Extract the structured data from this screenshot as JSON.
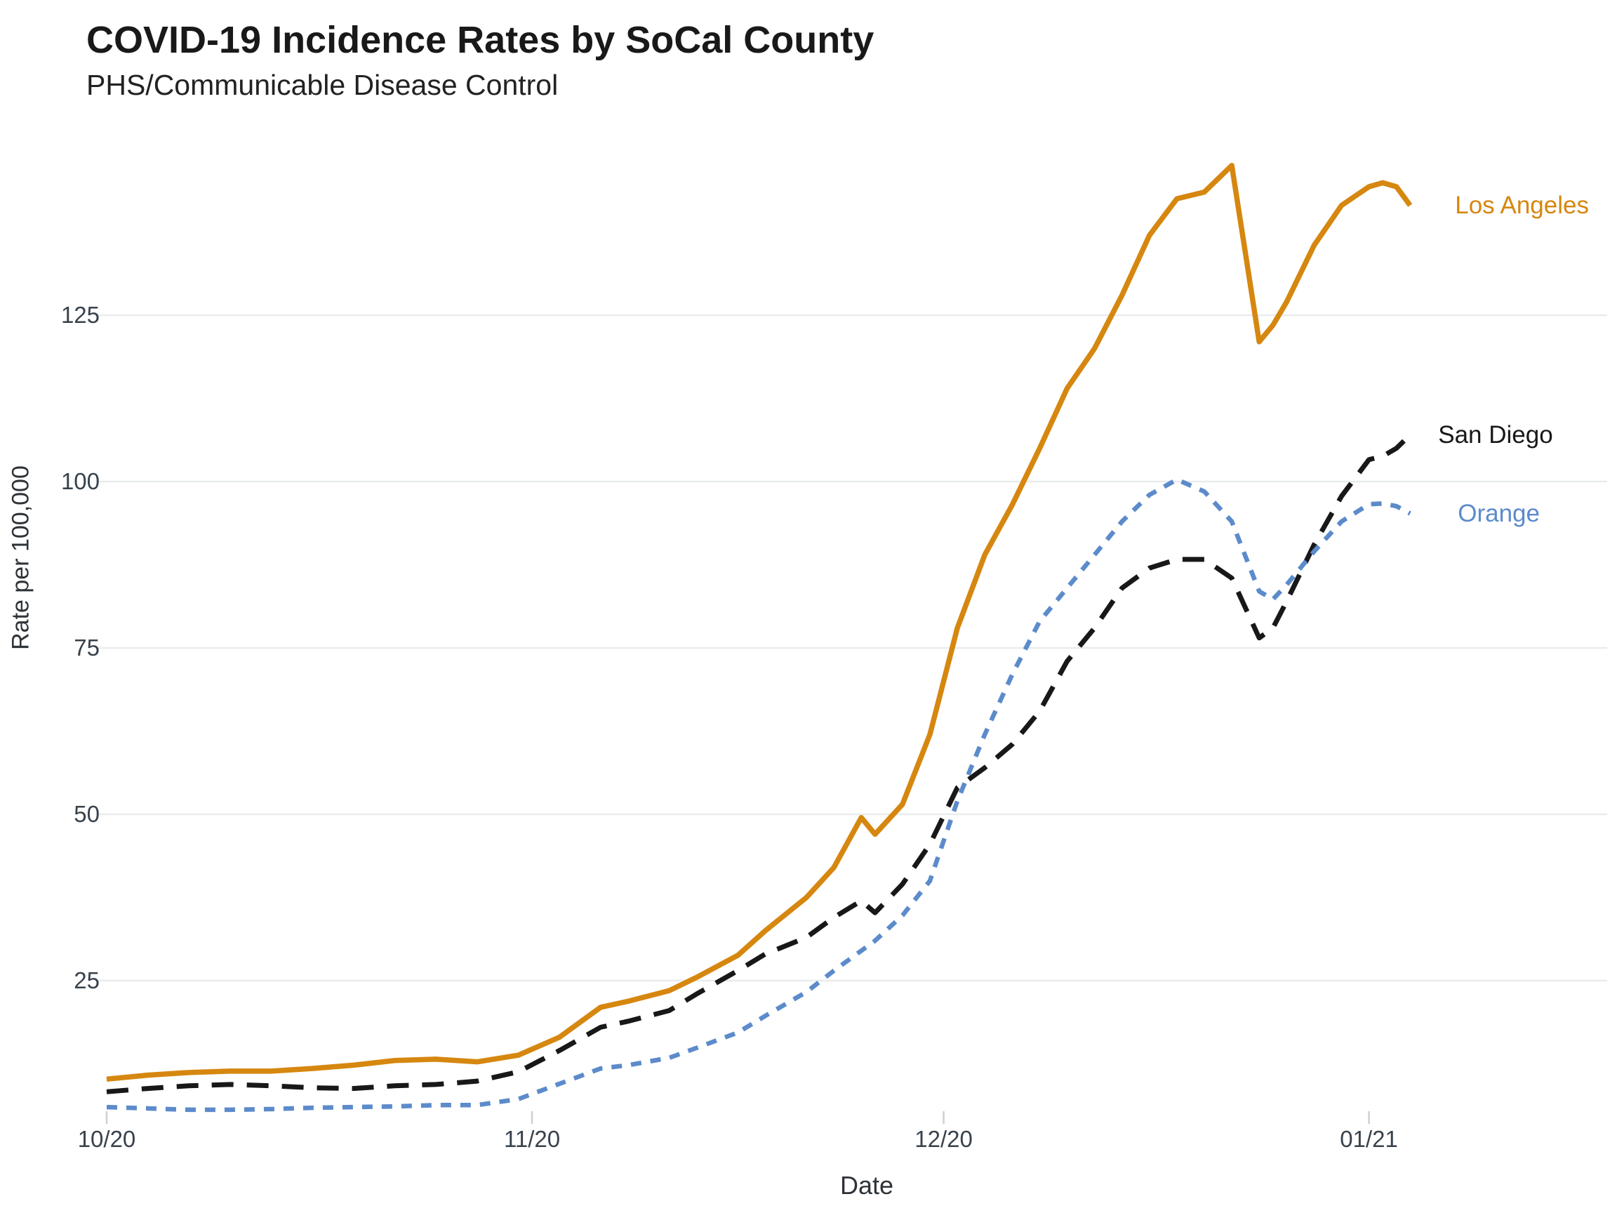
{
  "header": {
    "title": "COVID-19 Incidence Rates by SoCal County",
    "subtitle": "PHS/Communicable Disease Control"
  },
  "axes": {
    "x": {
      "label": "Date"
    },
    "y": {
      "label": "Rate per 100,000"
    }
  },
  "colors": {
    "background": "#ffffff",
    "gridline": "#e9eced",
    "tick_mark": "#cbd0d4",
    "tick_text": "#38424c",
    "los_angeles": "#d6870f",
    "san_diego": "#181818",
    "orange": "#5c8bcb"
  },
  "chart_data": {
    "type": "line",
    "title": "COVID-19 Incidence Rates by SoCal County",
    "subtitle": "PHS/Communicable Disease Control",
    "xlabel": "Date",
    "ylabel": "Rate per 100,000",
    "grid": "horizontal-only",
    "legend_position": "right-of-line-ends",
    "ylim": [
      5,
      157
    ],
    "y_ticks": [
      {
        "label": "25",
        "value": 25
      },
      {
        "label": "50",
        "value": 50
      },
      {
        "label": "75",
        "value": 75
      },
      {
        "label": "100",
        "value": 100
      },
      {
        "label": "125",
        "value": 125
      }
    ],
    "x_ticks": [
      {
        "label": "10/20",
        "day": 0
      },
      {
        "label": "11/20",
        "day": 31
      },
      {
        "label": "12/20",
        "day": 61
      },
      {
        "label": "01/21",
        "day": 92
      }
    ],
    "x_dates": [
      "10/01",
      "10/04",
      "10/07",
      "10/10",
      "10/13",
      "10/16",
      "10/19",
      "10/22",
      "10/25",
      "10/28",
      "10/31",
      "11/03",
      "11/06",
      "11/08",
      "11/11",
      "11/13",
      "11/16",
      "11/18",
      "11/21",
      "11/23",
      "11/25",
      "11/26",
      "11/28",
      "11/30",
      "12/02",
      "12/04",
      "12/06",
      "12/08",
      "12/10",
      "12/12",
      "12/14",
      "12/16",
      "12/18",
      "12/20",
      "12/22",
      "12/24",
      "12/25",
      "12/26",
      "12/28",
      "12/30",
      "01/01",
      "01/02",
      "01/03",
      "01/04"
    ],
    "day_offsets": [
      0,
      3,
      6,
      9,
      12,
      15,
      18,
      21,
      24,
      27,
      30,
      33,
      36,
      38,
      41,
      43,
      46,
      48,
      51,
      53,
      55,
      56,
      58,
      60,
      62,
      64,
      66,
      68,
      70,
      72,
      74,
      76,
      78,
      80,
      82,
      84,
      85,
      86,
      88,
      90,
      92,
      93,
      94,
      95
    ],
    "series": [
      {
        "name": "Los Angeles",
        "color": "#d6870f",
        "line_style": "solid",
        "values": [
          10.2,
          10.8,
          11.2,
          11.4,
          11.4,
          11.8,
          12.3,
          13.0,
          13.2,
          12.8,
          13.8,
          16.5,
          21.0,
          21.9,
          23.5,
          25.5,
          28.8,
          32.5,
          37.5,
          42.0,
          49.5,
          47.0,
          51.5,
          62.0,
          78.0,
          89.0,
          96.5,
          105.0,
          114.0,
          120.0,
          128.0,
          137.0,
          142.5,
          143.5,
          147.5,
          121.0,
          123.5,
          127.0,
          135.5,
          141.5,
          144.3,
          144.9,
          144.3,
          141.5
        ]
      },
      {
        "name": "San Diego",
        "color": "#181818",
        "line_style": "dashed",
        "values": [
          8.3,
          8.8,
          9.2,
          9.4,
          9.2,
          8.9,
          8.8,
          9.2,
          9.4,
          9.9,
          11.3,
          14.5,
          18.0,
          18.9,
          20.5,
          23.0,
          26.5,
          29.0,
          31.5,
          34.5,
          37.0,
          35.2,
          39.5,
          45.5,
          54.0,
          57.0,
          60.5,
          65.5,
          73.0,
          78.0,
          84.0,
          87.0,
          88.3,
          88.3,
          85.5,
          76.5,
          78.0,
          82.0,
          90.5,
          97.8,
          103.3,
          103.8,
          105.0,
          107.0
        ]
      },
      {
        "name": "Orange",
        "color": "#5c8bcb",
        "line_style": "dotted",
        "values": [
          6.0,
          5.8,
          5.6,
          5.6,
          5.7,
          5.9,
          6.0,
          6.1,
          6.3,
          6.3,
          7.2,
          9.5,
          11.8,
          12.3,
          13.4,
          14.9,
          17.2,
          19.7,
          23.3,
          26.5,
          29.5,
          31.0,
          34.8,
          40.0,
          52.0,
          62.0,
          71.0,
          79.0,
          84.0,
          89.0,
          94.0,
          98.0,
          100.3,
          98.5,
          94.0,
          83.5,
          82.3,
          84.5,
          89.5,
          94.0,
          96.6,
          96.7,
          96.3,
          95.2
        ]
      }
    ]
  }
}
